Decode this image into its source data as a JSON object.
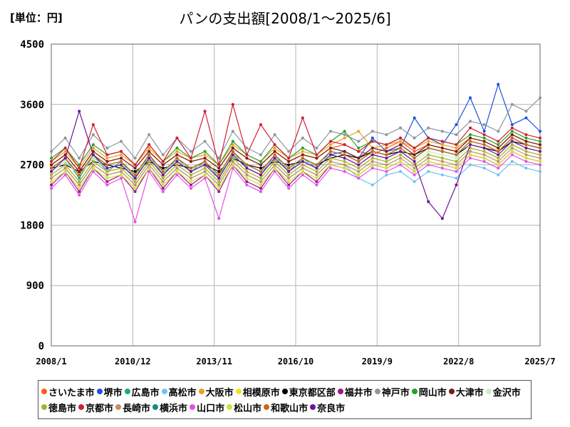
{
  "header": {
    "unit_label": "[単位：円]"
  },
  "chart_data": {
    "type": "line",
    "title": "パンの支出額[2008/1～2025/6]",
    "xlabel": "",
    "ylabel": "",
    "ylim": [
      0,
      4500
    ],
    "yticks": [
      "0",
      "900",
      "1800",
      "2700",
      "3600",
      "4500"
    ],
    "xticks": [
      "2008/1",
      "2010/12",
      "2013/11",
      "2016/10",
      "2019/9",
      "2022/8",
      "2025/7"
    ],
    "grid": true,
    "legend_position": "bottom",
    "series": [
      {
        "name": "さいたま市",
        "color": "#ff5a1e",
        "values": [
          2700,
          2850,
          2600,
          2900,
          2750,
          2800,
          2650,
          2900,
          2700,
          2850,
          2750,
          2800,
          2650,
          2950,
          2800,
          2700,
          2900,
          2750,
          2850,
          2800,
          2950,
          3000,
          2900,
          2850,
          2950,
          3050,
          2900,
          3000,
          2950,
          2900,
          3100,
          3050,
          2950,
          3150,
          3050,
          3000
        ]
      },
      {
        "name": "堺市",
        "color": "#1e50dc",
        "values": [
          2600,
          2750,
          2550,
          2800,
          2650,
          2700,
          2550,
          2800,
          2600,
          2750,
          2650,
          2700,
          2550,
          2850,
          2700,
          2600,
          2800,
          2650,
          2750,
          2700,
          2850,
          2900,
          2800,
          3100,
          2900,
          2950,
          3400,
          3100,
          3000,
          3300,
          3700,
          3200,
          3900,
          3300,
          3400,
          3200
        ]
      },
      {
        "name": "広島市",
        "color": "#1eaa78",
        "values": [
          2650,
          2800,
          2500,
          2850,
          2600,
          2750,
          2500,
          2850,
          2550,
          2800,
          2600,
          2750,
          2500,
          2900,
          2650,
          2550,
          2850,
          2600,
          2800,
          2650,
          2900,
          2850,
          2750,
          2900,
          2850,
          2950,
          2800,
          2950,
          2900,
          2850,
          3050,
          3000,
          2900,
          3100,
          3000,
          2950
        ]
      },
      {
        "name": "高松市",
        "color": "#6ec3f5",
        "values": [
          2500,
          2650,
          2400,
          2700,
          2550,
          2600,
          2400,
          2700,
          2450,
          2650,
          2500,
          2600,
          2400,
          2750,
          2550,
          2450,
          2700,
          2500,
          2650,
          2550,
          2750,
          2700,
          2500,
          2400,
          2550,
          2600,
          2450,
          2600,
          2550,
          2500,
          2700,
          2650,
          2550,
          2750,
          2650,
          2600
        ]
      },
      {
        "name": "大阪市",
        "color": "#f0a01e",
        "values": [
          2750,
          2900,
          2650,
          2950,
          2800,
          2850,
          2700,
          2950,
          2750,
          2900,
          2800,
          2850,
          2700,
          3000,
          2850,
          2750,
          2950,
          2800,
          2900,
          2850,
          3000,
          3100,
          3200,
          2950,
          3000,
          3050,
          2950,
          3050,
          3000,
          2950,
          3100,
          3050,
          2950,
          3150,
          3050,
          3000
        ]
      },
      {
        "name": "相模原市",
        "color": "#f5e11e",
        "values": [
          2550,
          2700,
          2450,
          2750,
          2600,
          2650,
          2450,
          2750,
          2500,
          2700,
          2550,
          2650,
          2450,
          2800,
          2600,
          2500,
          2750,
          2550,
          2700,
          2600,
          2800,
          2750,
          2650,
          2800,
          2750,
          2850,
          2700,
          2850,
          2800,
          2750,
          2950,
          2900,
          2800,
          3000,
          2900,
          2850
        ]
      },
      {
        "name": "東京都区部",
        "color": "#000000",
        "values": [
          2650,
          2700,
          2600,
          2750,
          2700,
          2650,
          2600,
          2750,
          2650,
          2700,
          2650,
          2700,
          2600,
          2800,
          2700,
          2650,
          2750,
          2700,
          2750,
          2700,
          2800,
          2850,
          2800,
          2900,
          2850,
          2900,
          2850,
          2950,
          2900,
          2850,
          3000,
          2950,
          2900,
          3050,
          3000,
          2950
        ]
      },
      {
        "name": "福井市",
        "color": "#a0148c",
        "values": [
          2400,
          2600,
          2300,
          2650,
          2450,
          2550,
          2300,
          2650,
          2350,
          2600,
          2400,
          2550,
          2300,
          2700,
          2450,
          2350,
          2650,
          2400,
          2600,
          2450,
          2700,
          2650,
          2550,
          2700,
          2650,
          2750,
          2600,
          2750,
          2700,
          2650,
          2850,
          2800,
          2700,
          2900,
          2800,
          2750
        ]
      },
      {
        "name": "神戸市",
        "color": "#8c96a0",
        "values": [
          2900,
          3100,
          2800,
          3150,
          2950,
          3050,
          2800,
          3150,
          2850,
          3100,
          2900,
          3050,
          2800,
          3200,
          2950,
          2850,
          3150,
          2900,
          3100,
          2950,
          3200,
          3150,
          3050,
          3200,
          3150,
          3250,
          3100,
          3250,
          3200,
          3150,
          3350,
          3300,
          3200,
          3600,
          3500,
          3700
        ]
      },
      {
        "name": "岡山市",
        "color": "#28a028",
        "values": [
          2800,
          2950,
          2700,
          3000,
          2850,
          2900,
          2700,
          3000,
          2750,
          2950,
          2800,
          2900,
          2700,
          3050,
          2850,
          2750,
          3000,
          2800,
          2950,
          2850,
          3050,
          3200,
          2950,
          3050,
          3000,
          3100,
          2950,
          3100,
          3050,
          3000,
          3150,
          3100,
          3000,
          3200,
          3100,
          3050
        ]
      },
      {
        "name": "大津市",
        "color": "#781e14",
        "values": [
          2700,
          2850,
          2600,
          2900,
          2750,
          2800,
          2650,
          2900,
          2700,
          2850,
          2750,
          2800,
          2650,
          2950,
          2800,
          2700,
          2900,
          2750,
          2850,
          2800,
          2950,
          2900,
          2800,
          2950,
          2900,
          3000,
          2850,
          3000,
          2950,
          2900,
          3100,
          3050,
          2950,
          3150,
          3050,
          3000
        ]
      },
      {
        "name": "金沢市",
        "color": "#c8f0c8",
        "values": [
          2600,
          2750,
          2550,
          2800,
          2650,
          2700,
          2550,
          2800,
          2600,
          2750,
          2650,
          2700,
          2550,
          2850,
          2700,
          2600,
          2800,
          2650,
          2750,
          2700,
          2850,
          2800,
          2700,
          2850,
          2800,
          2900,
          2750,
          2900,
          2850,
          2800,
          3000,
          2950,
          2850,
          3050,
          2950,
          2900
        ]
      },
      {
        "name": "徳島市",
        "color": "#a0b432",
        "values": [
          2550,
          2700,
          2450,
          2750,
          2600,
          2650,
          2450,
          2750,
          2500,
          2700,
          2550,
          2650,
          2450,
          2800,
          2600,
          2500,
          2750,
          2550,
          2700,
          2600,
          2800,
          2750,
          2650,
          2800,
          2750,
          2850,
          2700,
          2850,
          2800,
          2750,
          2950,
          2900,
          2800,
          3000,
          2900,
          2850
        ]
      },
      {
        "name": "京都市",
        "color": "#d21e32",
        "values": [
          2750,
          2950,
          2650,
          3300,
          2850,
          2900,
          2700,
          3000,
          2750,
          3100,
          2800,
          3500,
          2700,
          3600,
          2850,
          3300,
          3000,
          2800,
          3400,
          2850,
          3050,
          3000,
          2900,
          3050,
          3000,
          3100,
          2950,
          3100,
          3050,
          3000,
          3250,
          3150,
          3050,
          3250,
          3150,
          3100
        ]
      },
      {
        "name": "長崎市",
        "color": "#c88c64",
        "values": [
          2500,
          2650,
          2400,
          2700,
          2550,
          2600,
          2400,
          2700,
          2450,
          2650,
          2500,
          2600,
          2400,
          2750,
          2550,
          2450,
          2700,
          2500,
          2650,
          2550,
          2750,
          2700,
          2600,
          2750,
          2700,
          2800,
          2650,
          2800,
          2750,
          2700,
          2900,
          2850,
          2750,
          2950,
          2850,
          2800
        ]
      },
      {
        "name": "横浜市",
        "color": "#148c78",
        "values": [
          2650,
          2800,
          2550,
          2850,
          2700,
          2750,
          2550,
          2850,
          2600,
          2800,
          2650,
          2750,
          2550,
          2900,
          2700,
          2600,
          2850,
          2650,
          2800,
          2700,
          2900,
          2850,
          2750,
          2900,
          2850,
          2950,
          2800,
          2950,
          2900,
          2850,
          3050,
          3000,
          2900,
          3100,
          3000,
          2950
        ]
      },
      {
        "name": "山口市",
        "color": "#e650e6",
        "values": [
          2350,
          2550,
          2250,
          2600,
          2400,
          2500,
          1850,
          2600,
          2300,
          2550,
          2350,
          2500,
          1900,
          2650,
          2400,
          2300,
          2600,
          2350,
          2550,
          2400,
          2650,
          2600,
          2500,
          2650,
          2600,
          2700,
          2550,
          2700,
          2650,
          2600,
          2800,
          2750,
          2650,
          2850,
          2750,
          2700
        ]
      },
      {
        "name": "松山市",
        "color": "#c8e632",
        "values": [
          2450,
          2600,
          2350,
          2650,
          2500,
          2550,
          2350,
          2650,
          2400,
          2600,
          2450,
          2550,
          2350,
          2700,
          2500,
          2400,
          2650,
          2450,
          2600,
          2500,
          2700,
          2650,
          2550,
          2700,
          2650,
          2750,
          2600,
          2750,
          2700,
          2650,
          2850,
          2800,
          2700,
          2900,
          2800,
          2750
        ]
      },
      {
        "name": "和歌山市",
        "color": "#d26414",
        "values": [
          2650,
          2800,
          2550,
          2850,
          2700,
          2750,
          2550,
          2850,
          2600,
          2800,
          2650,
          2750,
          2550,
          2900,
          2700,
          2600,
          2850,
          2650,
          2800,
          2700,
          2900,
          2850,
          2750,
          2900,
          2850,
          2950,
          2800,
          2950,
          2900,
          2850,
          3050,
          3000,
          2900,
          3100,
          3000,
          2950
        ]
      },
      {
        "name": "奈良市",
        "color": "#6e1496",
        "values": [
          2600,
          2800,
          3500,
          2850,
          2650,
          2700,
          2500,
          2800,
          2550,
          2750,
          2600,
          2700,
          2500,
          2850,
          2650,
          2550,
          2800,
          2600,
          2750,
          2650,
          2850,
          2800,
          2700,
          2850,
          2800,
          2900,
          2750,
          2150,
          1900,
          2400,
          3000,
          2950,
          2850,
          3050,
          2950,
          2900
        ]
      }
    ]
  }
}
